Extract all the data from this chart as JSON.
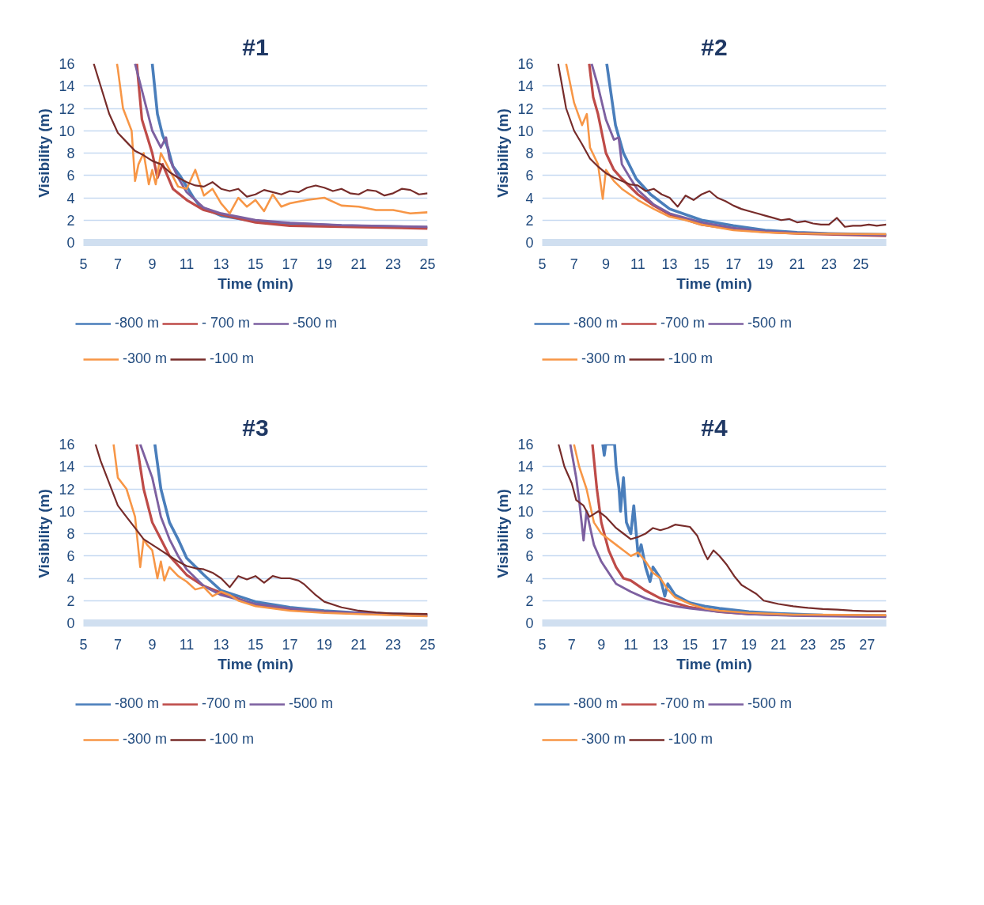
{
  "chart_data": [
    {
      "type": "line",
      "title": "#1",
      "xlabel": "Time (min)",
      "ylabel": "Visibility (m)",
      "xlim": [
        5,
        25
      ],
      "xticks": [
        5,
        7,
        9,
        11,
        13,
        15,
        17,
        19,
        21,
        23,
        25
      ],
      "ylim": [
        0,
        16
      ],
      "yticks": [
        0,
        2,
        4,
        6,
        8,
        10,
        12,
        14,
        16
      ],
      "grid": "y",
      "legend": "bottom",
      "line_style": "solid",
      "marker": "none",
      "series": [
        {
          "name": "-800 m",
          "color": "#4a7ebb",
          "x": [
            9.0,
            9.3,
            9.6,
            9.9,
            10.2,
            10.6,
            11.0,
            11.4,
            11.8,
            13,
            15,
            17,
            20,
            25
          ],
          "values": [
            16,
            11.5,
            9.6,
            8.5,
            6.8,
            6.0,
            5.0,
            4.0,
            3.2,
            2.4,
            1.9,
            1.7,
            1.5,
            1.35
          ]
        },
        {
          "name": "- 700 m",
          "color": "#be4b48",
          "x": [
            8.1,
            8.4,
            8.7,
            9.0,
            9.3,
            9.6,
            10.2,
            11,
            12,
            13,
            15,
            17,
            20,
            25
          ],
          "values": [
            16,
            11,
            9.5,
            8,
            5.8,
            7,
            4.8,
            3.8,
            2.9,
            2.5,
            1.8,
            1.5,
            1.4,
            1.25
          ]
        },
        {
          "name": "-500 m",
          "color": "#7d60a0",
          "x": [
            8.0,
            8.5,
            9,
            9.5,
            9.8,
            10,
            10.5,
            11,
            12,
            13,
            15,
            17,
            20,
            25
          ],
          "values": [
            16,
            13,
            10,
            8.5,
            9.4,
            7.5,
            5.8,
            4.5,
            3.1,
            2.6,
            2.0,
            1.75,
            1.55,
            1.4
          ]
        },
        {
          "name": "-300 m",
          "color": "#f79646",
          "x": [
            6.95,
            7,
            7.3,
            7.8,
            8.0,
            8.2,
            8.5,
            8.8,
            9,
            9.2,
            9.5,
            10,
            10.5,
            11,
            11.5,
            12,
            12.5,
            13,
            13.5,
            14,
            14.5,
            15,
            15.5,
            16,
            16.5,
            17,
            18,
            19,
            20,
            21,
            22,
            23,
            24,
            25
          ],
          "values": [
            16,
            15.5,
            12,
            10,
            5.5,
            7,
            8,
            5.2,
            6.5,
            5.2,
            8,
            6.5,
            5,
            4.8,
            6.5,
            4.2,
            4.8,
            3.5,
            2.6,
            4,
            3.2,
            3.8,
            2.8,
            4.3,
            3.2,
            3.5,
            3.8,
            4.0,
            3.3,
            3.2,
            2.9,
            2.9,
            2.6,
            2.7
          ]
        },
        {
          "name": "-100 m",
          "color": "#772c2a",
          "x": [
            5.6,
            6,
            6.5,
            7,
            7.5,
            8,
            8.5,
            9,
            9.5,
            10,
            10.5,
            11,
            11.5,
            12,
            12.5,
            13,
            13.5,
            14,
            14.5,
            15,
            15.5,
            16,
            16.5,
            17,
            17.5,
            18,
            18.5,
            19,
            19.5,
            20,
            20.5,
            21,
            21.5,
            22,
            22.5,
            23,
            23.5,
            24,
            24.5,
            25
          ],
          "values": [
            16,
            14,
            11.5,
            9.8,
            9,
            8.2,
            7.8,
            7.3,
            7,
            6.3,
            5.8,
            5.4,
            5.1,
            5,
            5.4,
            4.8,
            4.6,
            4.8,
            4.1,
            4.3,
            4.7,
            4.5,
            4.3,
            4.6,
            4.5,
            4.9,
            5.1,
            4.9,
            4.6,
            4.8,
            4.4,
            4.3,
            4.7,
            4.6,
            4.2,
            4.4,
            4.8,
            4.7,
            4.3,
            4.4
          ]
        }
      ]
    },
    {
      "type": "line",
      "title": "#2",
      "xlabel": "Time (min)",
      "ylabel": "Visibility (m)",
      "xlim": [
        5,
        26.6
      ],
      "xticks": [
        5,
        7,
        9,
        11,
        13,
        15,
        17,
        19,
        21,
        23,
        25
      ],
      "ylim": [
        0,
        16
      ],
      "yticks": [
        0,
        2,
        4,
        6,
        8,
        10,
        12,
        14,
        16
      ],
      "grid": "y",
      "legend": "bottom",
      "line_style": "solid",
      "marker": "none",
      "series": [
        {
          "name": "-800 m",
          "color": "#4a7ebb",
          "x": [
            9.05,
            9.3,
            9.6,
            10.1,
            10.9,
            11.8,
            13,
            15,
            17,
            19,
            21,
            23,
            26.6
          ],
          "values": [
            16,
            13.5,
            10.5,
            8,
            5.7,
            4.3,
            3.0,
            2.0,
            1.5,
            1.1,
            0.9,
            0.8,
            0.7
          ]
        },
        {
          "name": "-700 m",
          "color": "#be4b48",
          "x": [
            7.95,
            8.2,
            8.5,
            9,
            9.5,
            10,
            11,
            12,
            13,
            15,
            17,
            19,
            21,
            26.6
          ],
          "values": [
            16,
            13,
            11.5,
            8,
            6.5,
            5.7,
            4.3,
            3.3,
            2.5,
            1.6,
            1.2,
            0.95,
            0.8,
            0.6
          ]
        },
        {
          "name": "-500 m",
          "color": "#7d60a0",
          "x": [
            8.1,
            8.5,
            9,
            9.5,
            9.8,
            10,
            10.5,
            11,
            12,
            13,
            15,
            17,
            19,
            21,
            26.6
          ],
          "values": [
            16,
            14,
            11,
            9.2,
            9.4,
            7,
            5.8,
            4.7,
            3.4,
            2.6,
            1.8,
            1.3,
            1.0,
            0.85,
            0.65
          ]
        },
        {
          "name": "-300 m",
          "color": "#f79646",
          "x": [
            6.5,
            7,
            7.5,
            7.8,
            8,
            8.5,
            8.8,
            9,
            9.5,
            10,
            11,
            12,
            13,
            14,
            15,
            17,
            19,
            21,
            26.6
          ],
          "values": [
            16,
            12.5,
            10.5,
            11.5,
            8.5,
            7,
            3.9,
            6.5,
            5.5,
            4.8,
            3.8,
            3.0,
            2.3,
            2.0,
            1.6,
            1.1,
            0.9,
            0.8,
            0.75
          ]
        },
        {
          "name": "-100 m",
          "color": "#772c2a",
          "x": [
            6.0,
            6.5,
            7,
            7.5,
            8,
            8.5,
            9,
            9.5,
            10,
            10.5,
            11,
            11.5,
            12,
            12.5,
            13,
            13.5,
            14,
            14.5,
            15,
            15.5,
            16,
            16.5,
            17,
            17.5,
            18,
            18.5,
            19,
            19.5,
            20,
            20.5,
            21,
            21.5,
            22,
            22.5,
            23,
            23.5,
            24,
            24.5,
            25,
            25.5,
            26,
            26.6
          ],
          "values": [
            16,
            12,
            10,
            8.8,
            7.5,
            6.8,
            6.2,
            5.8,
            5.5,
            5.2,
            5.1,
            4.6,
            4.8,
            4.3,
            4.0,
            3.2,
            4.2,
            3.8,
            4.3,
            4.6,
            4.0,
            3.7,
            3.3,
            3.0,
            2.8,
            2.6,
            2.4,
            2.2,
            2.0,
            2.1,
            1.8,
            1.9,
            1.7,
            1.6,
            1.6,
            2.2,
            1.4,
            1.5,
            1.5,
            1.6,
            1.5,
            1.6
          ]
        }
      ]
    },
    {
      "type": "line",
      "title": "#3",
      "xlabel": "Time (min)",
      "ylabel": "Visibility (m)",
      "xlim": [
        5,
        25
      ],
      "xticks": [
        5,
        7,
        9,
        11,
        13,
        15,
        17,
        19,
        21,
        23,
        25
      ],
      "ylim": [
        0,
        16
      ],
      "yticks": [
        0,
        2,
        4,
        6,
        8,
        10,
        12,
        14,
        16
      ],
      "grid": "y",
      "legend": "bottom",
      "line_style": "solid",
      "marker": "none",
      "series": [
        {
          "name": "-800 m",
          "color": "#4a7ebb",
          "x": [
            9.15,
            9.5,
            10,
            10.5,
            11,
            12,
            13,
            15,
            17,
            19,
            21,
            25
          ],
          "values": [
            16,
            12,
            9,
            7.5,
            5.8,
            4.3,
            2.9,
            1.9,
            1.4,
            1.1,
            0.9,
            0.7
          ]
        },
        {
          "name": "-700 m",
          "color": "#be4b48",
          "x": [
            8.1,
            8.5,
            9,
            9.5,
            10,
            11,
            12,
            13,
            15,
            17,
            19,
            21,
            25
          ],
          "values": [
            16,
            12,
            9,
            7.5,
            6,
            4.3,
            3.3,
            2.7,
            1.6,
            1.2,
            1.0,
            0.85,
            0.65
          ]
        },
        {
          "name": "-500 m",
          "color": "#7d60a0",
          "x": [
            8.3,
            9,
            9.5,
            10,
            10.5,
            11,
            12,
            13,
            15,
            17,
            19,
            21,
            25
          ],
          "values": [
            16,
            13,
            9.5,
            7.5,
            6,
            4.8,
            3.3,
            2.5,
            1.7,
            1.3,
            1.0,
            0.9,
            0.75
          ]
        },
        {
          "name": "-300 m",
          "color": "#f79646",
          "x": [
            6.75,
            7,
            7.5,
            8,
            8.3,
            8.5,
            8.7,
            9,
            9.3,
            9.5,
            9.7,
            10,
            10.5,
            11,
            11.5,
            12,
            12.5,
            13,
            13.5,
            14,
            15,
            17,
            19,
            21,
            25
          ],
          "values": [
            16,
            13,
            12,
            9.5,
            5,
            7.5,
            7,
            6.5,
            4,
            5.5,
            3.8,
            5,
            4.2,
            3.7,
            3.0,
            3.2,
            2.4,
            2.8,
            2.5,
            2.0,
            1.5,
            1.1,
            0.9,
            0.8,
            0.6
          ]
        },
        {
          "name": "-100 m",
          "color": "#772c2a",
          "x": [
            5.7,
            6,
            6.5,
            7,
            7.5,
            8,
            8.5,
            9,
            9.5,
            10,
            10.5,
            11,
            11.5,
            12,
            12.5,
            13,
            13.5,
            14,
            14.5,
            15,
            15.5,
            16,
            16.5,
            17,
            17.5,
            17.8,
            18.5,
            19,
            20,
            21,
            22,
            23,
            25
          ],
          "values": [
            16,
            14.5,
            12.5,
            10.5,
            9.5,
            8.5,
            7.5,
            7,
            6.5,
            6,
            5.5,
            5.1,
            4.9,
            4.8,
            4.5,
            4.0,
            3.2,
            4.2,
            3.9,
            4.2,
            3.6,
            4.2,
            4.0,
            4.0,
            3.8,
            3.5,
            2.5,
            1.9,
            1.4,
            1.1,
            0.95,
            0.85,
            0.8
          ]
        }
      ]
    },
    {
      "type": "line",
      "title": "#4",
      "xlabel": "Time (min)",
      "ylabel": "Visibility (m)",
      "xlim": [
        5,
        28.3
      ],
      "xticks": [
        5,
        7,
        9,
        11,
        13,
        15,
        17,
        19,
        21,
        23,
        25,
        27
      ],
      "ylim": [
        0,
        16
      ],
      "yticks": [
        0,
        2,
        4,
        6,
        8,
        10,
        12,
        14,
        16
      ],
      "grid": "y",
      "legend": "bottom",
      "line_style": "solid",
      "marker": "none",
      "series": [
        {
          "name": "-800 m",
          "color": "#4a7ebb",
          "x": [
            9.1,
            9.2,
            9.3,
            9.9,
            10,
            10.2,
            10.3,
            10.5,
            10.7,
            11,
            11.2,
            11.5,
            11.7,
            12,
            12.3,
            12.5,
            13,
            13.3,
            13.5,
            14,
            15,
            16,
            17,
            19,
            21,
            24,
            28.3
          ],
          "values": [
            16,
            15,
            16,
            16,
            14,
            12,
            10,
            13,
            9,
            8,
            10.5,
            6,
            7,
            5,
            3.7,
            5,
            4,
            2.4,
            3.5,
            2.5,
            1.8,
            1.5,
            1.3,
            1.0,
            0.85,
            0.7,
            0.65
          ]
        },
        {
          "name": "-700 m",
          "color": "#be4b48",
          "x": [
            8.4,
            8.7,
            9,
            9.5,
            10,
            10.5,
            11,
            12,
            13,
            14,
            15,
            17,
            19,
            22,
            28.3
          ],
          "values": [
            16,
            12,
            9,
            6.5,
            5,
            4,
            3.8,
            2.9,
            2.2,
            1.8,
            1.4,
            1.0,
            0.8,
            0.7,
            0.6
          ]
        },
        {
          "name": "-500 m",
          "color": "#7d60a0",
          "x": [
            6.9,
            7.3,
            7.5,
            7.8,
            8,
            8.5,
            9,
            9.5,
            10,
            11,
            12,
            13,
            14,
            15,
            17,
            19,
            22,
            28.3
          ],
          "values": [
            16,
            13,
            11,
            7.4,
            10,
            7,
            5.5,
            4.5,
            3.5,
            2.8,
            2.2,
            1.8,
            1.5,
            1.3,
            1.0,
            0.8,
            0.65,
            0.55
          ]
        },
        {
          "name": "-300 m",
          "color": "#f79646",
          "x": [
            7.15,
            7.5,
            8,
            8.5,
            9,
            9.5,
            10,
            10.5,
            11,
            11.5,
            12,
            12.5,
            13,
            13.5,
            14,
            15,
            16,
            17,
            19,
            22,
            28.3
          ],
          "values": [
            16,
            14,
            12,
            9,
            8,
            7.5,
            7,
            6.5,
            6,
            6.3,
            5.5,
            4.5,
            4,
            3,
            2.3,
            1.7,
            1.3,
            1.1,
            0.9,
            0.75,
            0.7
          ]
        },
        {
          "name": "-100 m",
          "color": "#772c2a",
          "x": [
            6.1,
            6.5,
            7,
            7.3,
            7.8,
            8.2,
            8.8,
            9.3,
            10,
            10.5,
            11,
            11.5,
            12,
            12.5,
            13,
            13.5,
            14,
            15,
            15.5,
            16,
            16.2,
            16.6,
            17,
            17.5,
            18,
            18.5,
            19,
            19.5,
            20,
            21,
            22,
            23,
            24,
            25,
            26,
            27,
            28.3
          ],
          "values": [
            16,
            14,
            12.5,
            11,
            10.5,
            9.5,
            10,
            9.5,
            8.5,
            8,
            7.5,
            7.7,
            8,
            8.5,
            8.3,
            8.5,
            8.8,
            8.6,
            7.8,
            6.2,
            5.7,
            6.5,
            6,
            5.2,
            4.2,
            3.4,
            3,
            2.6,
            2,
            1.7,
            1.5,
            1.35,
            1.25,
            1.2,
            1.1,
            1.05,
            1.05
          ]
        }
      ]
    }
  ]
}
